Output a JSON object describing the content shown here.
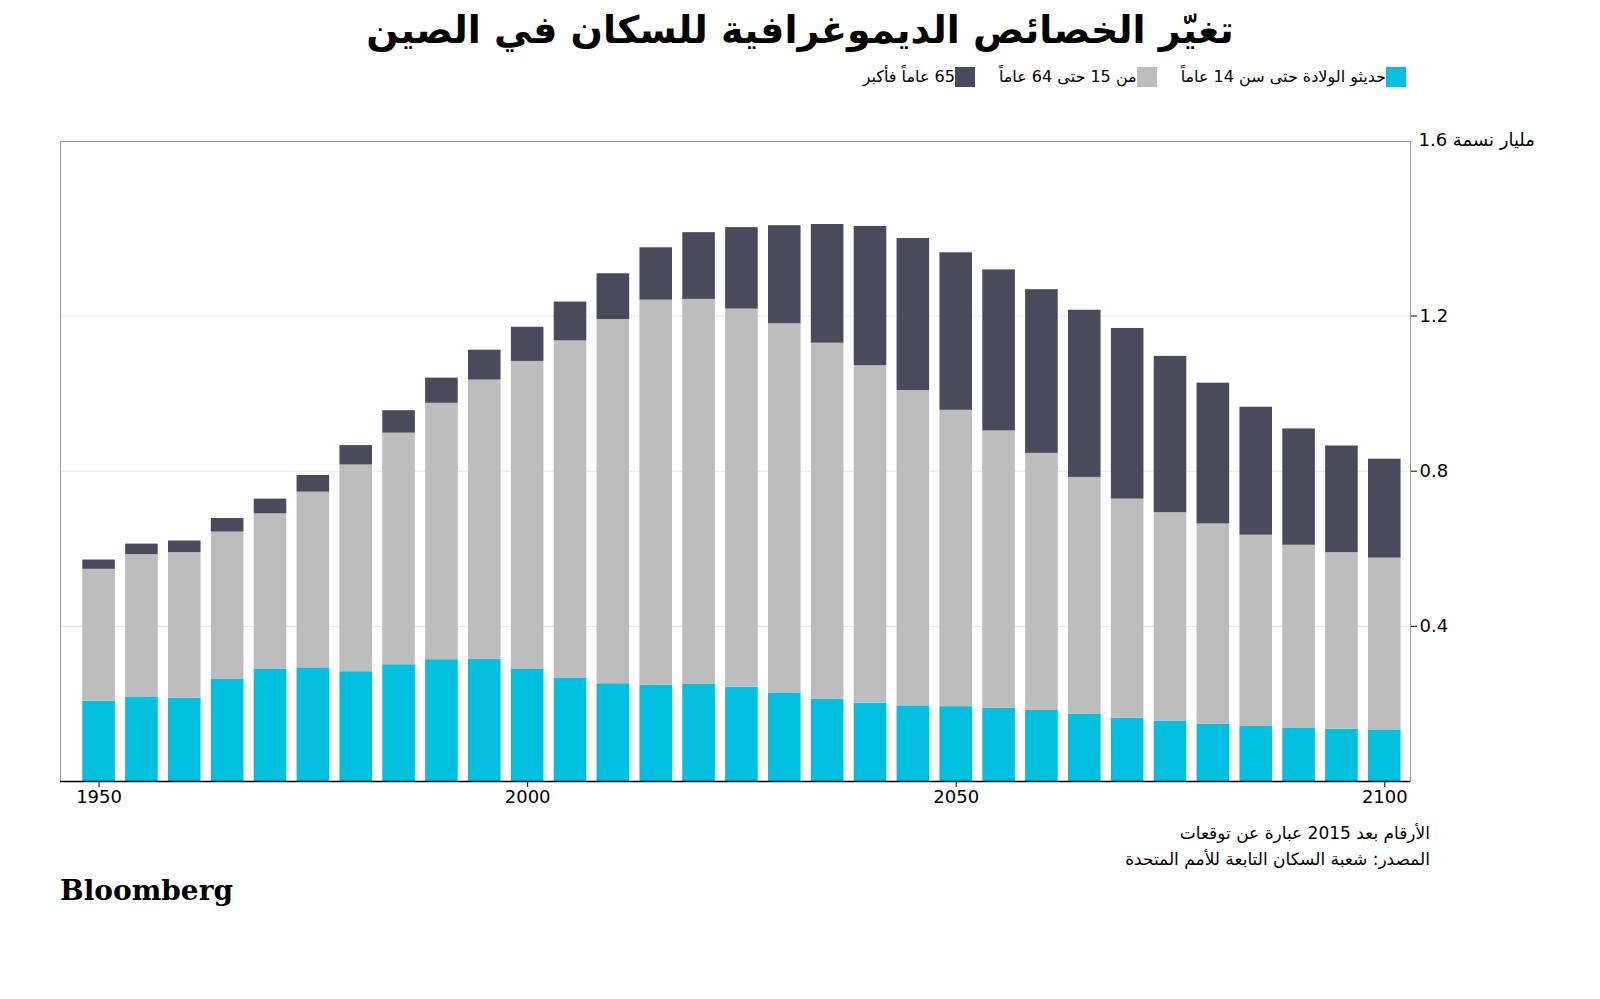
{
  "chart_data": {
    "type": "bar",
    "stacked": true,
    "title": "تغيّر الخصائص الديموغرافية للسكان في الصين",
    "annotations": [
      "1.6 مليار نسمة"
    ],
    "notes": [
      "الأرقام بعد 2015 عبارة عن توقعات",
      "المصدر: شعبة السكان التابعة للأمم المتحدة"
    ],
    "credit": "Bloomberg",
    "x": [
      1950,
      1955,
      1960,
      1965,
      1970,
      1975,
      1980,
      1985,
      1990,
      1995,
      2000,
      2005,
      2010,
      2015,
      2020,
      2025,
      2030,
      2035,
      2040,
      2045,
      2050,
      2055,
      2060,
      2065,
      2070,
      2075,
      2080,
      2085,
      2090,
      2095,
      2100
    ],
    "series": [
      {
        "name": "حديثو الولادة حتى سن 14 عاماً",
        "color": "#00BFDF",
        "values": [
          0.207,
          0.218,
          0.215,
          0.263,
          0.29,
          0.293,
          0.283,
          0.301,
          0.314,
          0.315,
          0.29,
          0.267,
          0.252,
          0.248,
          0.25,
          0.243,
          0.228,
          0.212,
          0.202,
          0.195,
          0.193,
          0.189,
          0.183,
          0.174,
          0.163,
          0.155,
          0.148,
          0.142,
          0.138,
          0.135,
          0.133
        ]
      },
      {
        "name": "من 15 حتى 64 عاماً",
        "color": "#BDBDBD",
        "values": [
          0.34,
          0.367,
          0.375,
          0.38,
          0.4,
          0.453,
          0.533,
          0.597,
          0.661,
          0.72,
          0.793,
          0.869,
          0.939,
          0.993,
          0.993,
          0.975,
          0.952,
          0.918,
          0.87,
          0.813,
          0.764,
          0.715,
          0.663,
          0.61,
          0.565,
          0.538,
          0.516,
          0.493,
          0.471,
          0.455,
          0.443
        ]
      },
      {
        "name": "65 عاماً فأكبر",
        "color": "#4A4A5C",
        "values": [
          0.024,
          0.027,
          0.03,
          0.035,
          0.038,
          0.043,
          0.05,
          0.058,
          0.065,
          0.077,
          0.088,
          0.1,
          0.118,
          0.135,
          0.172,
          0.21,
          0.253,
          0.306,
          0.359,
          0.392,
          0.406,
          0.415,
          0.422,
          0.431,
          0.44,
          0.403,
          0.363,
          0.33,
          0.3,
          0.275,
          0.255
        ]
      }
    ],
    "xlim": [
      1945.5,
      2103
    ],
    "xticks": [
      1950,
      2000,
      2050,
      2100
    ],
    "ylim": [
      0,
      1.65
    ],
    "yticks": [
      0.4,
      0.8,
      1.2
    ],
    "grid": true,
    "legend": "top"
  }
}
